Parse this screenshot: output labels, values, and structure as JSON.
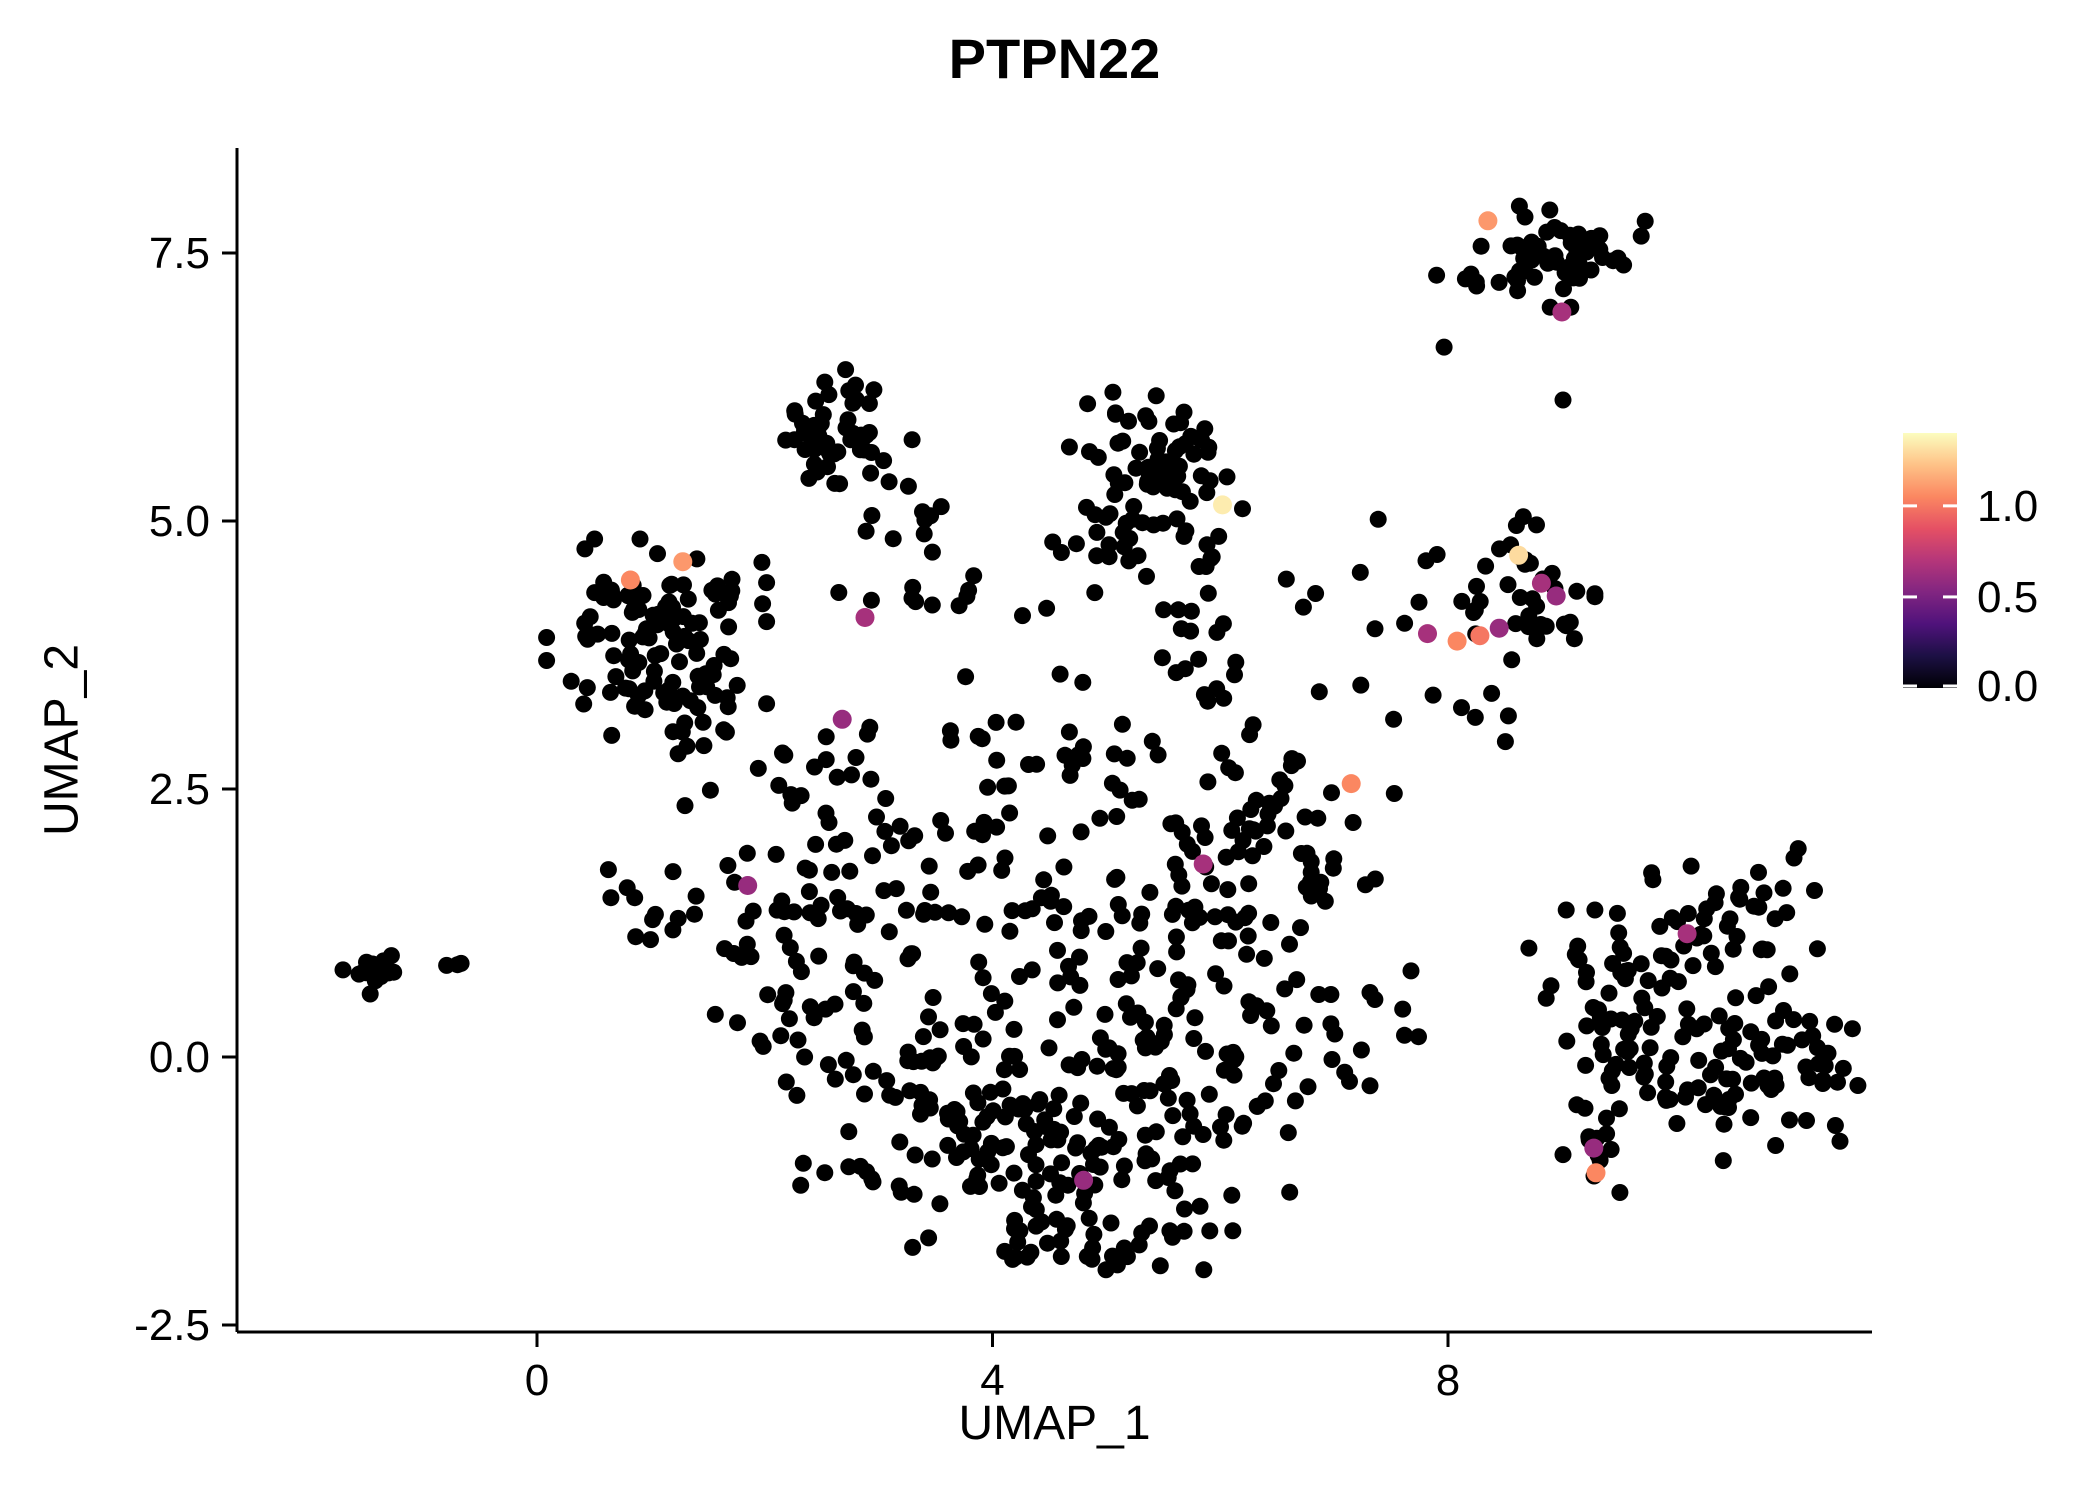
{
  "figure": {
    "background_color": "#ffffff",
    "axis_color": "#000000",
    "point_color_default": "#000000"
  },
  "chart_data": {
    "type": "scatter",
    "title": "PTPN22",
    "xlabel": "UMAP_1",
    "ylabel": "UMAP_2",
    "x_ticks": [
      0,
      4,
      8
    ],
    "x_tick_labels": [
      "0",
      "4",
      "8"
    ],
    "y_ticks": [
      -2.5,
      0.0,
      2.5,
      5.0,
      7.5
    ],
    "y_tick_labels": [
      "-2.5",
      "0.0",
      "2.5",
      "5.0",
      "7.5"
    ],
    "xlim": [
      -2.6,
      11.7
    ],
    "ylim": [
      -2.55,
      8.45
    ],
    "grid": false,
    "legend_position": "right",
    "colorbar": {
      "title": "",
      "ticks": [
        0.0,
        0.5,
        1.0
      ],
      "tick_labels": [
        "0.0",
        "0.5",
        "1.0"
      ],
      "vmin": 0.0,
      "vmax": 1.4,
      "colormap": "magma",
      "stops": [
        {
          "t": 0.0,
          "color": "#000004"
        },
        {
          "t": 0.125,
          "color": "#1c1044"
        },
        {
          "t": 0.25,
          "color": "#4f127b"
        },
        {
          "t": 0.375,
          "color": "#812581"
        },
        {
          "t": 0.5,
          "color": "#b5367a"
        },
        {
          "t": 0.625,
          "color": "#e55064"
        },
        {
          "t": 0.75,
          "color": "#fb8761"
        },
        {
          "t": 0.875,
          "color": "#fec287"
        },
        {
          "t": 1.0,
          "color": "#fcfdbf"
        }
      ]
    },
    "expression_points": [
      {
        "x": 0.82,
        "y": 4.45,
        "value": 1.05
      },
      {
        "x": 1.28,
        "y": 4.62,
        "value": 1.1
      },
      {
        "x": 2.88,
        "y": 4.1,
        "value": 0.65
      },
      {
        "x": 2.68,
        "y": 3.15,
        "value": 0.6
      },
      {
        "x": 1.85,
        "y": 1.6,
        "value": 0.6
      },
      {
        "x": 6.02,
        "y": 5.15,
        "value": 1.35
      },
      {
        "x": 7.15,
        "y": 2.55,
        "value": 1.05
      },
      {
        "x": 5.85,
        "y": 1.8,
        "value": 0.65
      },
      {
        "x": 4.8,
        "y": -1.15,
        "value": 0.6
      },
      {
        "x": 8.35,
        "y": 7.8,
        "value": 1.1
      },
      {
        "x": 9.0,
        "y": 6.95,
        "value": 0.65
      },
      {
        "x": 8.62,
        "y": 4.68,
        "value": 1.3
      },
      {
        "x": 8.82,
        "y": 4.42,
        "value": 0.65
      },
      {
        "x": 8.95,
        "y": 4.3,
        "value": 0.6
      },
      {
        "x": 7.82,
        "y": 3.95,
        "value": 0.65
      },
      {
        "x": 8.08,
        "y": 3.88,
        "value": 1.05
      },
      {
        "x": 8.28,
        "y": 3.93,
        "value": 1.0
      },
      {
        "x": 8.45,
        "y": 4.0,
        "value": 0.6
      },
      {
        "x": 10.1,
        "y": 1.15,
        "value": 0.65
      },
      {
        "x": 9.28,
        "y": -0.85,
        "value": 0.6
      },
      {
        "x": 9.3,
        "y": -1.08,
        "value": 1.05
      }
    ],
    "background_clusters": [
      {
        "cx": -1.45,
        "cy": 0.75,
        "sdx": 0.17,
        "sdy": 0.1,
        "n": 15
      },
      {
        "cx": -0.72,
        "cy": 0.82,
        "sdx": 0.1,
        "sdy": 0.05,
        "n": 3
      },
      {
        "cx": 1.05,
        "cy": 4.05,
        "sdx": 0.42,
        "sdy": 0.34,
        "n": 85
      },
      {
        "cx": 1.35,
        "cy": 3.3,
        "sdx": 0.45,
        "sdy": 0.35,
        "n": 35
      },
      {
        "cx": 1.85,
        "cy": 2.55,
        "sdx": 0.3,
        "sdy": 0.4,
        "n": 12
      },
      {
        "cx": 2.65,
        "cy": 5.8,
        "sdx": 0.28,
        "sdy": 0.27,
        "n": 50
      },
      {
        "cx": 2.95,
        "cy": 5.05,
        "sdx": 0.35,
        "sdy": 0.25,
        "n": 8
      },
      {
        "cx": 3.8,
        "cy": 4.35,
        "sdx": 0.5,
        "sdy": 0.16,
        "n": 14
      },
      {
        "cx": 3.4,
        "cy": 5.1,
        "sdx": 0.5,
        "sdy": 0.08,
        "n": 3
      },
      {
        "cx": 5.55,
        "cy": 5.45,
        "sdx": 0.42,
        "sdy": 0.38,
        "n": 80
      },
      {
        "cx": 4.75,
        "cy": 5.0,
        "sdx": 0.25,
        "sdy": 0.3,
        "n": 10
      },
      {
        "cx": 5.95,
        "cy": 4.0,
        "sdx": 0.4,
        "sdy": 0.45,
        "n": 25
      },
      {
        "cx": 8.95,
        "cy": 7.5,
        "sdx": 0.34,
        "sdy": 0.22,
        "n": 55
      },
      {
        "cx": 8.2,
        "cy": 7.3,
        "sdx": 0.18,
        "sdy": 0.18,
        "n": 6
      },
      {
        "cx": 7.95,
        "cy": 6.6,
        "sdx": 0.03,
        "sdy": 0.03,
        "n": 1
      },
      {
        "cx": 9.05,
        "cy": 6.1,
        "sdx": 0.03,
        "sdy": 0.03,
        "n": 1
      },
      {
        "cx": 7.4,
        "cy": 5.0,
        "sdx": 0.03,
        "sdy": 0.03,
        "n": 1
      },
      {
        "cx": 8.6,
        "cy": 4.35,
        "sdx": 0.3,
        "sdy": 0.3,
        "n": 40
      },
      {
        "cx": 7.62,
        "cy": 4.3,
        "sdx": 0.25,
        "sdy": 0.5,
        "n": 8
      },
      {
        "cx": 8.15,
        "cy": 3.3,
        "sdx": 0.25,
        "sdy": 0.25,
        "n": 6
      },
      {
        "cx": 0.9,
        "cy": 1.45,
        "sdx": 0.35,
        "sdy": 0.25,
        "n": 12
      },
      {
        "cx": 2.35,
        "cy": 1.0,
        "sdx": 0.45,
        "sdy": 0.7,
        "n": 60
      },
      {
        "cx": 3.6,
        "cy": -0.55,
        "sdx": 0.65,
        "sdy": 0.55,
        "n": 85
      },
      {
        "cx": 5.0,
        "cy": -0.95,
        "sdx": 0.75,
        "sdy": 0.45,
        "n": 95
      },
      {
        "cx": 4.6,
        "cy": 0.9,
        "sdx": 0.75,
        "sdy": 0.65,
        "n": 85
      },
      {
        "cx": 6.05,
        "cy": 0.35,
        "sdx": 0.55,
        "sdy": 0.65,
        "n": 65
      },
      {
        "cx": 5.75,
        "cy": 2.05,
        "sdx": 0.55,
        "sdy": 0.45,
        "n": 45
      },
      {
        "cx": 3.3,
        "cy": 1.95,
        "sdx": 0.5,
        "sdy": 0.45,
        "n": 35
      },
      {
        "cx": 4.3,
        "cy": 2.95,
        "sdx": 0.75,
        "sdy": 0.35,
        "n": 28
      },
      {
        "cx": 6.75,
        "cy": 1.9,
        "sdx": 0.35,
        "sdy": 0.55,
        "n": 30
      },
      {
        "cx": 4.5,
        "cy": -1.7,
        "sdx": 0.7,
        "sdy": 0.22,
        "n": 25
      },
      {
        "cx": 9.4,
        "cy": 0.35,
        "sdx": 0.3,
        "sdy": 0.6,
        "n": 55
      },
      {
        "cx": 10.35,
        "cy": 0.0,
        "sdx": 0.5,
        "sdy": 0.42,
        "n": 65
      },
      {
        "cx": 10.45,
        "cy": 1.3,
        "sdx": 0.45,
        "sdy": 0.28,
        "n": 40
      },
      {
        "cx": 11.15,
        "cy": -0.05,
        "sdx": 0.28,
        "sdy": 0.32,
        "n": 25
      },
      {
        "cx": 9.3,
        "cy": -0.85,
        "sdx": 0.12,
        "sdy": 0.18,
        "n": 10
      },
      {
        "cx": 7.6,
        "cy": 0.3,
        "sdx": 0.25,
        "sdy": 0.4,
        "n": 5
      }
    ]
  }
}
